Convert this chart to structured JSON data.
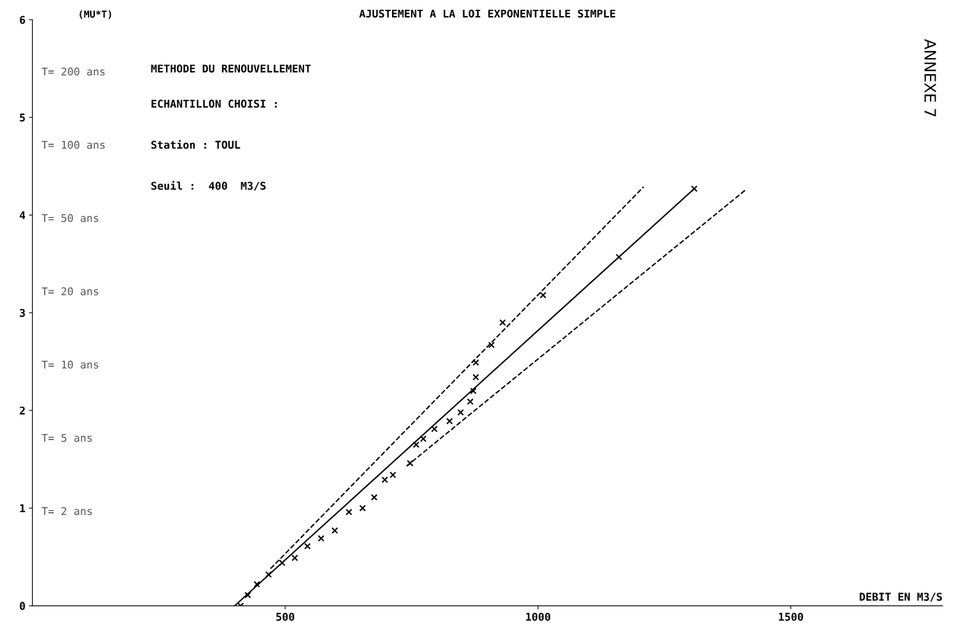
{
  "chart_data": {
    "type": "scatter",
    "title": "AJUSTEMENT A LA LOI EXPONENTIELLE SIMPLE",
    "subtitle": "METHODE DU RENOUVELLEMENT",
    "xlabel": "DEBIT EN M3/S",
    "ylabel": "(MU*T)",
    "annotations": [
      "ECHANTILLON CHOISI :",
      "Station : TOUL",
      "Seuil :  400  M3/S",
      "ANNEXE 7",
      "T= 200 ans",
      "T= 100 ans",
      "T= 50 ans",
      "T= 20 ans",
      "T= 10 ans",
      "T= 5 ans",
      "T= 2 ans"
    ],
    "series": [
      {
        "type": "line",
        "color": "#000000",
        "line_style": "solid",
        "marker": "none",
        "x": [
          400,
          1309
        ],
        "values": [
          0,
          4.27
        ]
      },
      {
        "type": "line",
        "color": "#000000",
        "line_style": "dashed",
        "marker": "none",
        "x": [
          471,
          1209
        ],
        "values": [
          0.38,
          4.29
        ]
      },
      {
        "type": "line",
        "color": "#000000",
        "line_style": "dashed",
        "marker": "none",
        "x": [
          740,
          1411
        ],
        "values": [
          1.43,
          4.26
        ]
      },
      {
        "type": "scatter",
        "color": "#000000",
        "marker": "cross",
        "x": [
          412,
          426,
          444,
          467,
          494,
          519,
          544,
          571,
          598,
          626,
          653,
          676,
          697,
          713,
          747,
          759,
          773,
          795,
          825,
          847,
          866,
          872,
          877,
          877,
          908,
          930,
          1010,
          1160,
          1309
        ],
        "values": [
          0.0,
          0.11,
          0.22,
          0.32,
          0.44,
          0.49,
          0.61,
          0.69,
          0.77,
          0.96,
          1.0,
          1.11,
          1.29,
          1.34,
          1.46,
          1.65,
          1.71,
          1.81,
          1.89,
          1.98,
          2.09,
          2.2,
          2.34,
          2.49,
          2.67,
          2.9,
          3.18,
          3.57,
          4.27
        ]
      }
    ],
    "xlim": [
      0,
      1800
    ],
    "ylim": [
      0,
      6
    ],
    "xticks": [
      500,
      1000,
      1500
    ],
    "yticks": [
      0,
      1,
      2,
      3,
      4,
      5,
      6
    ],
    "grid": false
  }
}
